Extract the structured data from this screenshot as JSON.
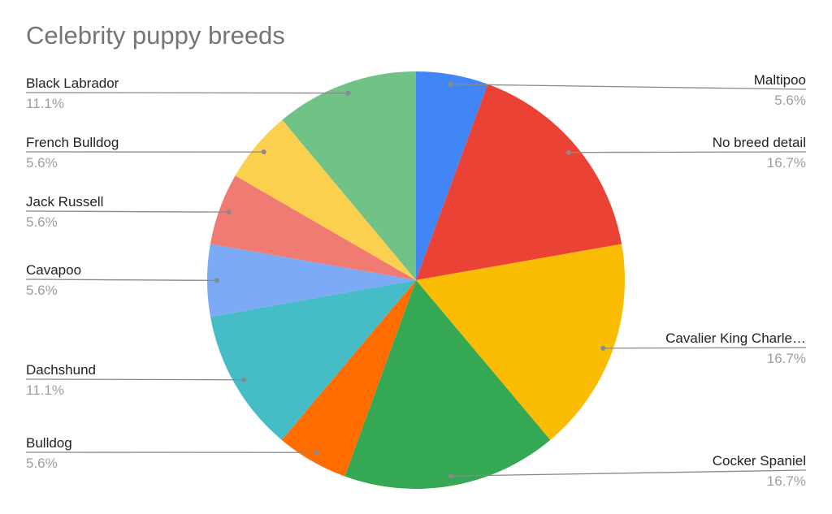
{
  "chart_data": {
    "type": "pie",
    "title": "Celebrity puppy breeds",
    "start": "top",
    "direction": "clockwise",
    "slices": [
      {
        "label": "Maltipoo",
        "percent_label": "5.6%",
        "value": 5.6,
        "color": "#4285F4",
        "side": "right"
      },
      {
        "label": "No breed detail",
        "percent_label": "16.7%",
        "value": 16.7,
        "color": "#EA4335",
        "side": "right"
      },
      {
        "label": "Cavalier King Charle…",
        "percent_label": "16.7%",
        "value": 16.7,
        "color": "#FBBC04",
        "side": "right"
      },
      {
        "label": "Cocker Spaniel",
        "percent_label": "16.7%",
        "value": 16.7,
        "color": "#34A853",
        "side": "right"
      },
      {
        "label": "Bulldog",
        "percent_label": "5.6%",
        "value": 5.6,
        "color": "#FF6D01",
        "side": "left"
      },
      {
        "label": "Dachshund",
        "percent_label": "11.1%",
        "value": 11.1,
        "color": "#46BDC6",
        "side": "left"
      },
      {
        "label": "Cavapoo",
        "percent_label": "5.6%",
        "value": 5.6,
        "color": "#7BAAF7",
        "side": "left"
      },
      {
        "label": "Jack Russell",
        "percent_label": "5.6%",
        "value": 5.6,
        "color": "#F07B72",
        "side": "left"
      },
      {
        "label": "French Bulldog",
        "percent_label": "5.6%",
        "value": 5.6,
        "color": "#FCD04F",
        "side": "left"
      },
      {
        "label": "Black Labrador",
        "percent_label": "11.1%",
        "value": 11.1,
        "color": "#71C287",
        "side": "left"
      }
    ]
  }
}
